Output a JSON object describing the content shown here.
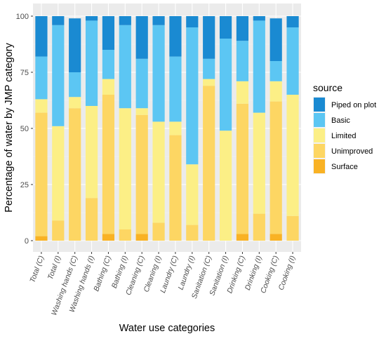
{
  "chart_data": {
    "type": "bar",
    "stacked": true,
    "xlabel": "Water use categories",
    "ylabel": "Percentage of water by JMP category",
    "ylim": [
      0,
      100
    ],
    "yticks": [
      "0",
      "25",
      "50",
      "75",
      "100"
    ],
    "grid": true,
    "legend": {
      "title": "source",
      "position": "right",
      "entries": [
        "Piped on plot",
        "Basic",
        "Limited",
        "Unimproved",
        "Surface"
      ]
    },
    "colors": {
      "Surface": "#f9b224",
      "Unimproved": "#fdd663",
      "Limited": "#fcef86",
      "Basic": "#5cc6f3",
      "Piped on plot": "#1a8ad2",
      "panel": "#ebebeb",
      "grid_major": "#ffffff",
      "grid_minor": "#f4f4f4"
    },
    "categories": [
      "Total (C)",
      "Total (I)",
      "Washing hands (C)",
      "Washing hands (I)",
      "Bathing (C)",
      "Bathing (I)",
      "Cleaning (C)",
      "Cleaning (I)",
      "Laundry (C)",
      "Laundry (I)",
      "Sanitation (C)",
      "Sanitation (I)",
      "Drinking (C)",
      "Drinking (I)",
      "Cooking (C)",
      "Cooking (I)"
    ],
    "series": [
      {
        "name": "Surface",
        "values": [
          2,
          0,
          0,
          0,
          3,
          0,
          3,
          0,
          0,
          0,
          0,
          0,
          3,
          0,
          3,
          0
        ]
      },
      {
        "name": "Unimproved",
        "values": [
          55,
          9,
          59,
          19,
          62,
          5,
          53,
          8,
          47,
          7,
          69,
          0,
          58,
          12,
          59,
          11
        ]
      },
      {
        "name": "Limited",
        "values": [
          6,
          42,
          5,
          41,
          7,
          54,
          3,
          45,
          6,
          27,
          3,
          49,
          10,
          45,
          9,
          54
        ]
      },
      {
        "name": "Basic",
        "values": [
          19,
          45,
          11,
          38,
          13,
          37,
          22,
          43,
          29,
          61,
          9,
          41,
          18,
          41,
          9,
          30
        ]
      },
      {
        "name": "Piped on plot",
        "values": [
          18,
          4,
          24,
          2,
          15,
          4,
          19,
          4,
          18,
          5,
          19,
          10,
          11,
          2,
          19,
          5
        ]
      }
    ]
  }
}
